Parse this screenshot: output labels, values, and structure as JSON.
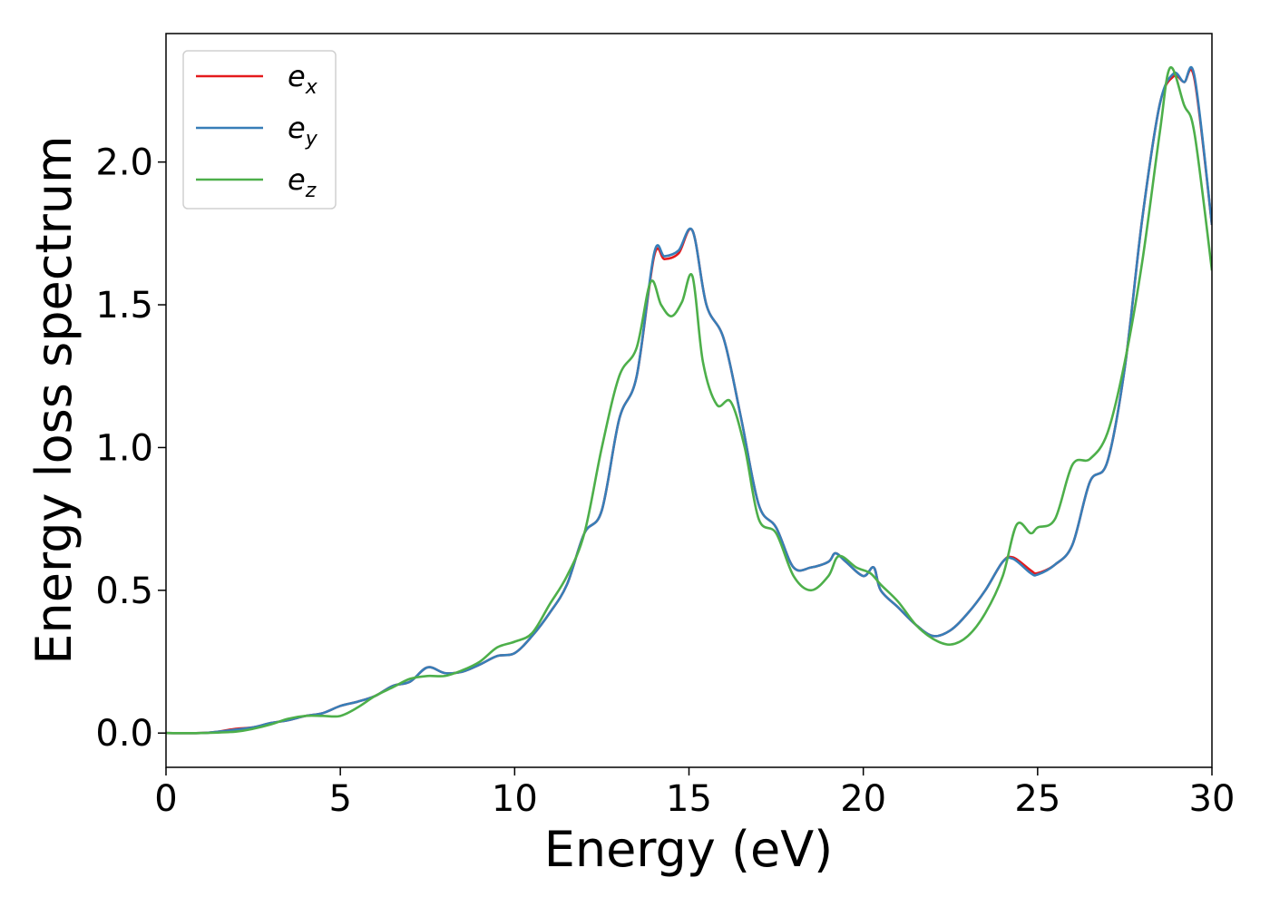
{
  "chart_data": {
    "type": "line",
    "title": "",
    "xlabel": "Energy (eV)",
    "ylabel": "Energy loss spectrum",
    "xlim": [
      0,
      30
    ],
    "ylim": [
      -0.12,
      2.45
    ],
    "xticks": [
      0,
      5,
      10,
      15,
      20,
      25,
      30
    ],
    "xtick_labels": [
      "0",
      "5",
      "10",
      "15",
      "20",
      "25",
      "30"
    ],
    "yticks": [
      0.0,
      0.5,
      1.0,
      1.5,
      2.0
    ],
    "ytick_labels": [
      "0.0",
      "0.5",
      "1.0",
      "1.5",
      "2.0"
    ],
    "grid": false,
    "legend_position": "top-left",
    "series": [
      {
        "name": "e",
        "subscript": "x",
        "color": "#e41a1c",
        "points": [
          [
            0,
            0
          ],
          [
            1,
            0
          ],
          [
            1.5,
            0.005
          ],
          [
            2,
            0.015
          ],
          [
            2.5,
            0.02
          ],
          [
            3,
            0.035
          ],
          [
            3.5,
            0.045
          ],
          [
            4,
            0.06
          ],
          [
            4.5,
            0.07
          ],
          [
            5,
            0.095
          ],
          [
            5.5,
            0.11
          ],
          [
            6,
            0.13
          ],
          [
            6.5,
            0.165
          ],
          [
            7,
            0.18
          ],
          [
            7.5,
            0.23
          ],
          [
            8,
            0.21
          ],
          [
            8.5,
            0.215
          ],
          [
            9,
            0.24
          ],
          [
            9.5,
            0.27
          ],
          [
            10,
            0.28
          ],
          [
            10.5,
            0.34
          ],
          [
            11,
            0.42
          ],
          [
            11.5,
            0.52
          ],
          [
            12,
            0.7
          ],
          [
            12.5,
            0.78
          ],
          [
            13,
            1.1
          ],
          [
            13.5,
            1.25
          ],
          [
            14,
            1.67
          ],
          [
            14.3,
            1.66
          ],
          [
            14.7,
            1.68
          ],
          [
            15.1,
            1.76
          ],
          [
            15.5,
            1.5
          ],
          [
            16,
            1.38
          ],
          [
            16.5,
            1.1
          ],
          [
            17,
            0.8
          ],
          [
            17.5,
            0.72
          ],
          [
            18,
            0.58
          ],
          [
            18.5,
            0.58
          ],
          [
            19,
            0.6
          ],
          [
            19.2,
            0.63
          ],
          [
            19.5,
            0.6
          ],
          [
            20,
            0.55
          ],
          [
            20.3,
            0.58
          ],
          [
            20.5,
            0.5
          ],
          [
            21,
            0.44
          ],
          [
            21.5,
            0.38
          ],
          [
            22,
            0.34
          ],
          [
            22.5,
            0.36
          ],
          [
            23,
            0.42
          ],
          [
            23.5,
            0.5
          ],
          [
            24,
            0.6
          ],
          [
            24.3,
            0.615
          ],
          [
            24.8,
            0.57
          ],
          [
            25,
            0.56
          ],
          [
            25.5,
            0.59
          ],
          [
            26,
            0.66
          ],
          [
            26.5,
            0.88
          ],
          [
            27,
            0.95
          ],
          [
            27.5,
            1.28
          ],
          [
            28,
            1.8
          ],
          [
            28.5,
            2.2
          ],
          [
            28.9,
            2.3
          ],
          [
            29.2,
            2.28
          ],
          [
            29.5,
            2.29
          ],
          [
            30,
            1.78
          ]
        ]
      },
      {
        "name": "e",
        "subscript": "y",
        "color": "#377eb8",
        "points": [
          [
            0,
            0
          ],
          [
            1,
            0
          ],
          [
            1.5,
            0.005
          ],
          [
            2,
            0.012
          ],
          [
            2.5,
            0.02
          ],
          [
            3,
            0.035
          ],
          [
            3.5,
            0.045
          ],
          [
            4,
            0.06
          ],
          [
            4.5,
            0.07
          ],
          [
            5,
            0.095
          ],
          [
            5.5,
            0.11
          ],
          [
            6,
            0.13
          ],
          [
            6.5,
            0.165
          ],
          [
            7,
            0.18
          ],
          [
            7.5,
            0.23
          ],
          [
            8,
            0.21
          ],
          [
            8.5,
            0.215
          ],
          [
            9,
            0.24
          ],
          [
            9.5,
            0.27
          ],
          [
            10,
            0.28
          ],
          [
            10.5,
            0.34
          ],
          [
            11,
            0.42
          ],
          [
            11.5,
            0.52
          ],
          [
            12,
            0.7
          ],
          [
            12.5,
            0.78
          ],
          [
            13,
            1.1
          ],
          [
            13.5,
            1.25
          ],
          [
            14,
            1.68
          ],
          [
            14.3,
            1.67
          ],
          [
            14.7,
            1.69
          ],
          [
            15.1,
            1.76
          ],
          [
            15.5,
            1.5
          ],
          [
            16,
            1.38
          ],
          [
            16.5,
            1.1
          ],
          [
            17,
            0.8
          ],
          [
            17.5,
            0.72
          ],
          [
            18,
            0.58
          ],
          [
            18.5,
            0.58
          ],
          [
            19,
            0.6
          ],
          [
            19.2,
            0.63
          ],
          [
            19.5,
            0.6
          ],
          [
            20,
            0.55
          ],
          [
            20.3,
            0.58
          ],
          [
            20.5,
            0.5
          ],
          [
            21,
            0.44
          ],
          [
            21.5,
            0.38
          ],
          [
            22,
            0.34
          ],
          [
            22.5,
            0.36
          ],
          [
            23,
            0.42
          ],
          [
            23.5,
            0.5
          ],
          [
            24,
            0.6
          ],
          [
            24.3,
            0.61
          ],
          [
            24.8,
            0.56
          ],
          [
            25,
            0.555
          ],
          [
            25.5,
            0.59
          ],
          [
            26,
            0.66
          ],
          [
            26.5,
            0.88
          ],
          [
            27,
            0.95
          ],
          [
            27.5,
            1.28
          ],
          [
            28,
            1.8
          ],
          [
            28.5,
            2.2
          ],
          [
            28.9,
            2.31
          ],
          [
            29.2,
            2.28
          ],
          [
            29.5,
            2.3
          ],
          [
            30,
            1.78
          ]
        ]
      },
      {
        "name": "e",
        "subscript": "z",
        "color": "#4daf4a",
        "points": [
          [
            0,
            0
          ],
          [
            1,
            0
          ],
          [
            2,
            0.005
          ],
          [
            2.5,
            0.015
          ],
          [
            3,
            0.03
          ],
          [
            3.5,
            0.05
          ],
          [
            4,
            0.06
          ],
          [
            4.5,
            0.06
          ],
          [
            5,
            0.06
          ],
          [
            5.5,
            0.09
          ],
          [
            6,
            0.13
          ],
          [
            6.5,
            0.16
          ],
          [
            7,
            0.19
          ],
          [
            7.5,
            0.2
          ],
          [
            8,
            0.2
          ],
          [
            8.5,
            0.22
          ],
          [
            9,
            0.25
          ],
          [
            9.5,
            0.3
          ],
          [
            10,
            0.32
          ],
          [
            10.5,
            0.35
          ],
          [
            11,
            0.45
          ],
          [
            11.5,
            0.55
          ],
          [
            12,
            0.7
          ],
          [
            12.5,
            1.0
          ],
          [
            13,
            1.25
          ],
          [
            13.5,
            1.35
          ],
          [
            13.9,
            1.58
          ],
          [
            14.2,
            1.5
          ],
          [
            14.5,
            1.46
          ],
          [
            14.8,
            1.51
          ],
          [
            15.1,
            1.6
          ],
          [
            15.4,
            1.3
          ],
          [
            15.8,
            1.15
          ],
          [
            16.2,
            1.16
          ],
          [
            16.6,
            1.0
          ],
          [
            17,
            0.75
          ],
          [
            17.5,
            0.7
          ],
          [
            18,
            0.55
          ],
          [
            18.5,
            0.5
          ],
          [
            19,
            0.55
          ],
          [
            19.3,
            0.62
          ],
          [
            19.8,
            0.58
          ],
          [
            20.2,
            0.56
          ],
          [
            20.5,
            0.52
          ],
          [
            21,
            0.46
          ],
          [
            21.5,
            0.38
          ],
          [
            22,
            0.33
          ],
          [
            22.5,
            0.31
          ],
          [
            23,
            0.34
          ],
          [
            23.5,
            0.42
          ],
          [
            24,
            0.55
          ],
          [
            24.4,
            0.73
          ],
          [
            24.8,
            0.7
          ],
          [
            25,
            0.72
          ],
          [
            25.5,
            0.75
          ],
          [
            26,
            0.94
          ],
          [
            26.5,
            0.96
          ],
          [
            27,
            1.05
          ],
          [
            27.5,
            1.3
          ],
          [
            28,
            1.65
          ],
          [
            28.5,
            2.1
          ],
          [
            28.8,
            2.33
          ],
          [
            29.2,
            2.2
          ],
          [
            29.5,
            2.1
          ],
          [
            30,
            1.62
          ]
        ]
      }
    ]
  }
}
